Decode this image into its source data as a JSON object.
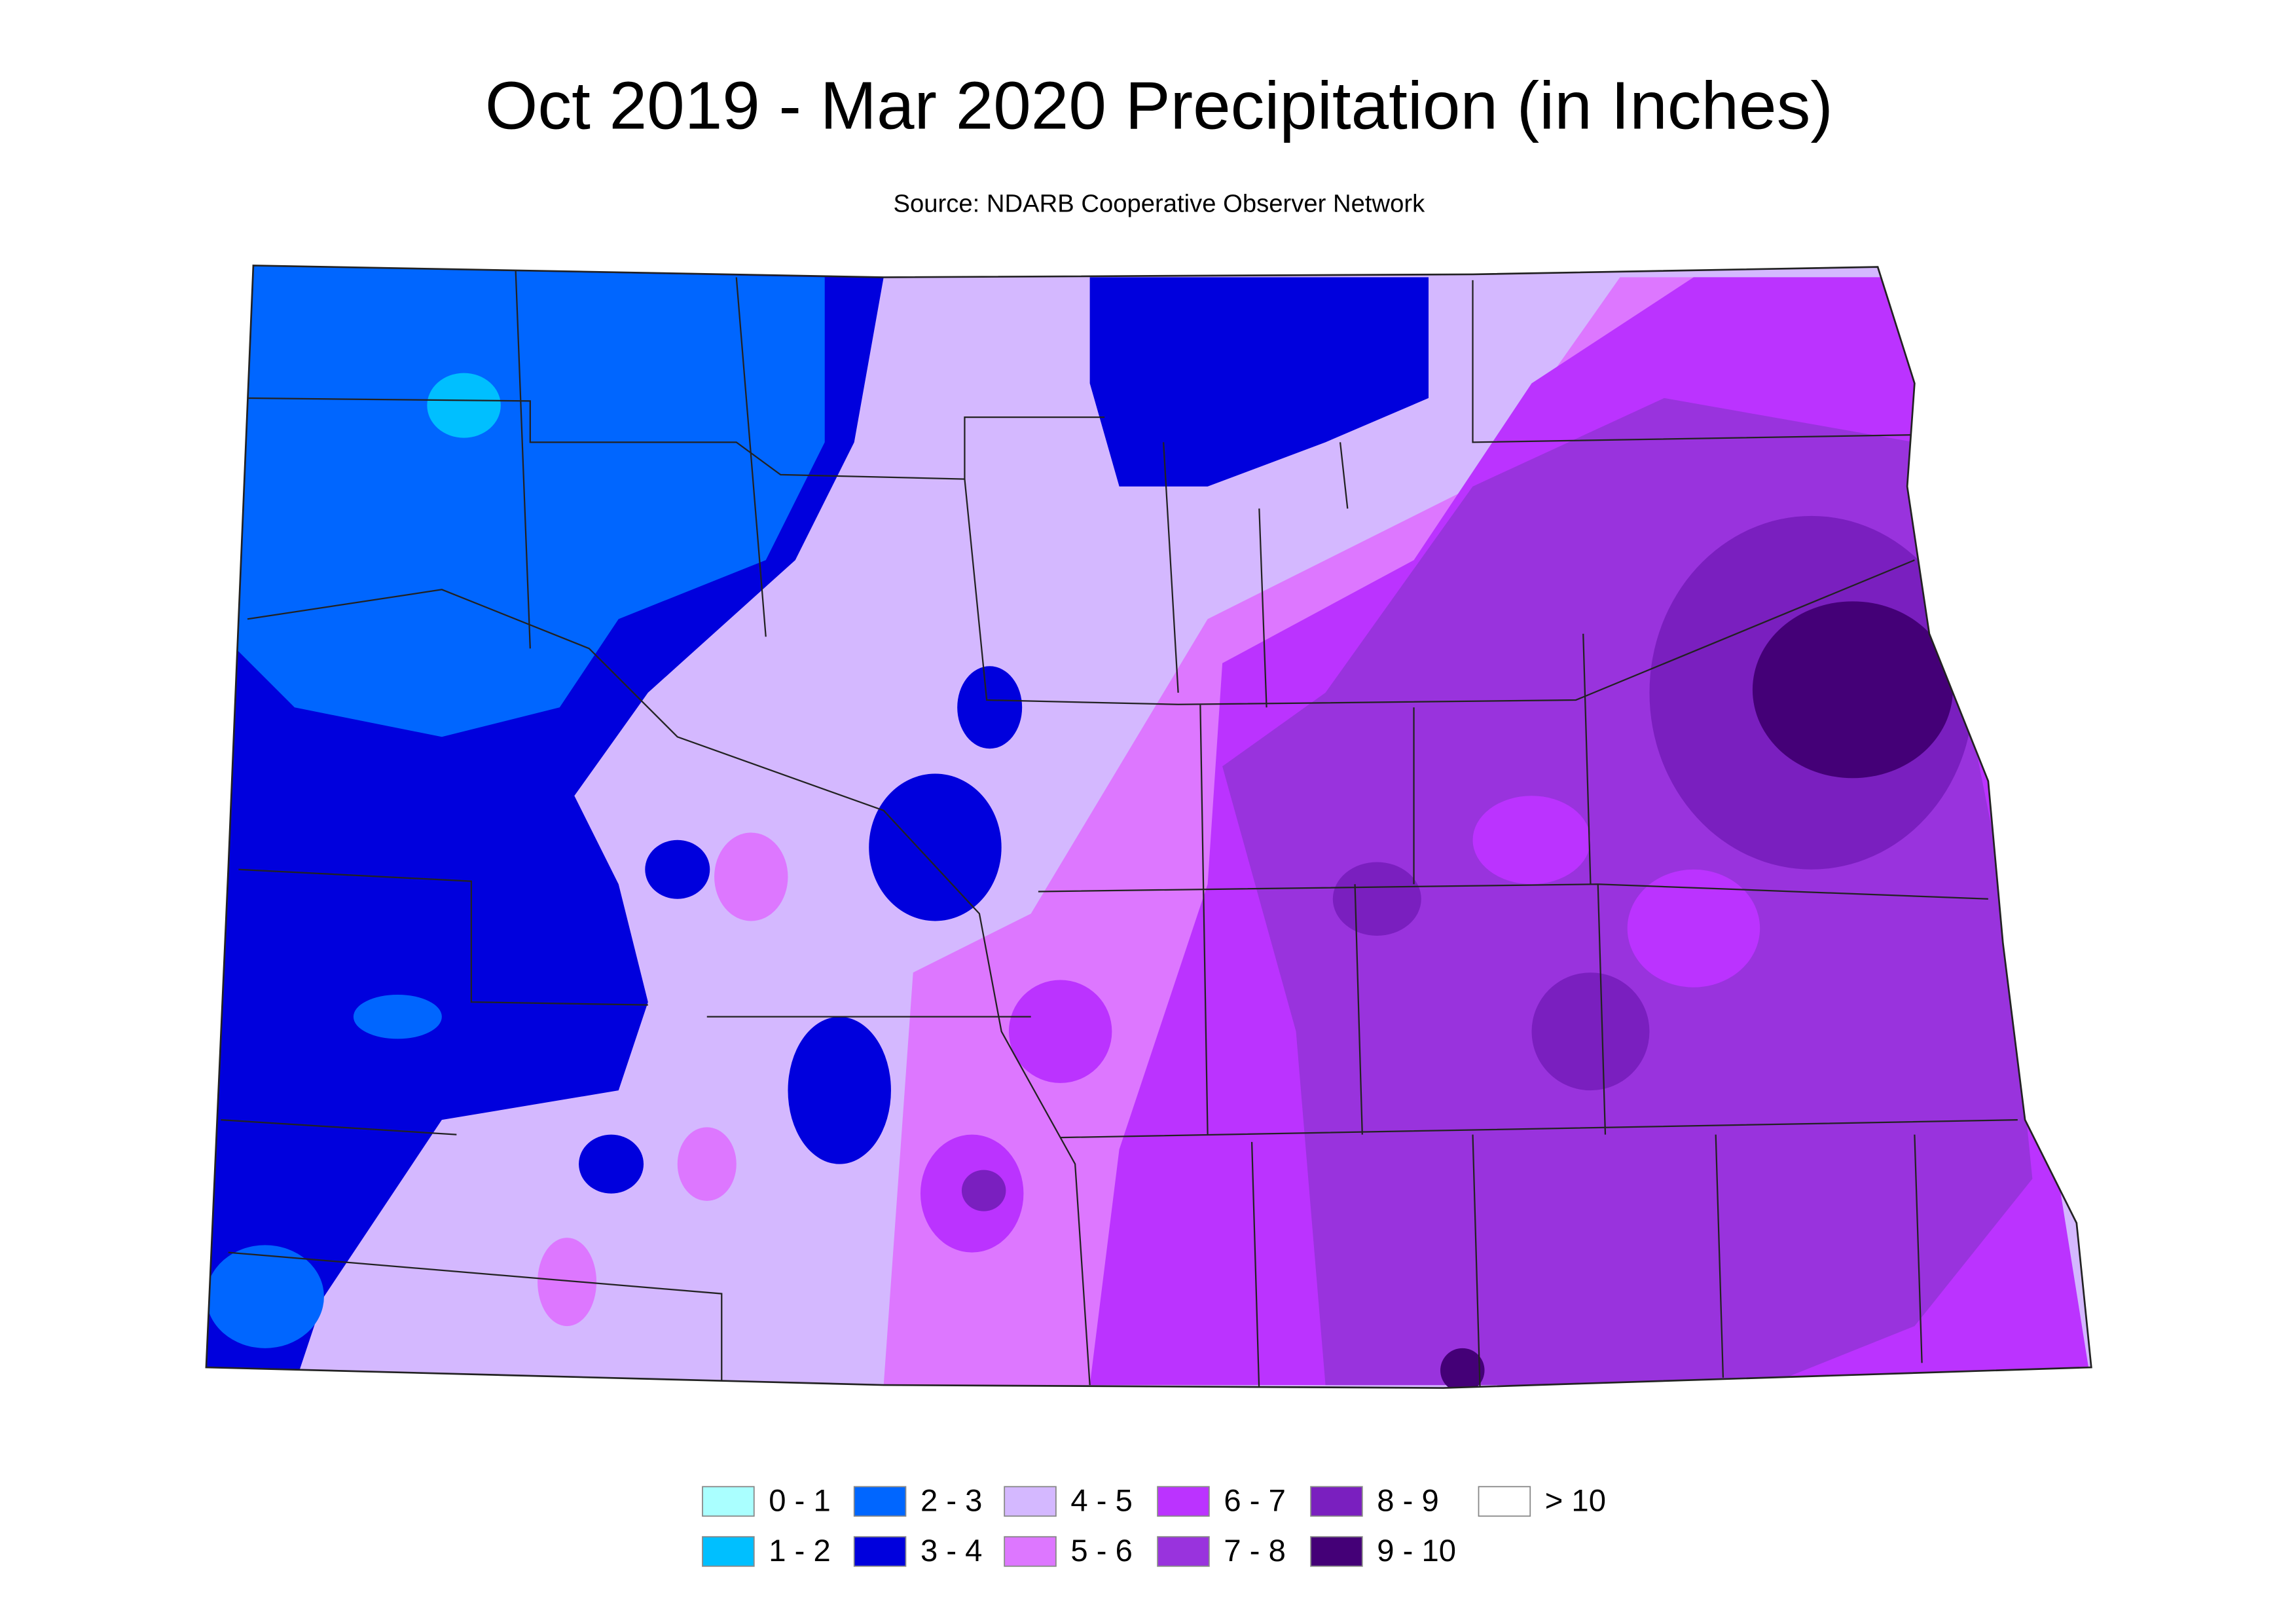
{
  "header": {
    "title": "Oct 2019 - Mar 2020 Precipitation (in Inches)",
    "subtitle": "Source: NDARB Cooperative Observer Network"
  },
  "legend": [
    {
      "label": "0 - 1",
      "color": "#aaffff"
    },
    {
      "label": "1 - 2",
      "color": "#00bfff"
    },
    {
      "label": "2 - 3",
      "color": "#0066ff"
    },
    {
      "label": "3 - 4",
      "color": "#0000dd"
    },
    {
      "label": "4 - 5",
      "color": "#d4b8ff"
    },
    {
      "label": "5 - 6",
      "color": "#dd77ff"
    },
    {
      "label": "6 - 7",
      "color": "#bb33ff"
    },
    {
      "label": "7 - 8",
      "color": "#9933dd"
    },
    {
      "label": "8 - 9",
      "color": "#7a1fbf"
    },
    {
      "label": "9 - 10",
      "color": "#440077"
    },
    {
      "label": "> 10",
      "color": "#ffffff"
    }
  ]
}
